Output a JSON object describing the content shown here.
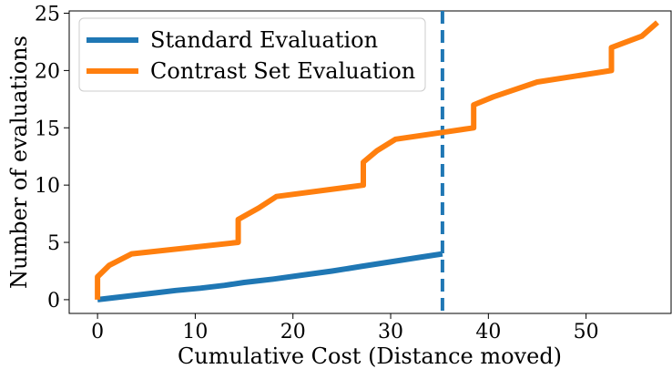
{
  "chart_data": {
    "type": "line",
    "title": "",
    "xlabel": "Cumulative Cost (Distance moved)",
    "ylabel": "Number of evaluations",
    "xlim": [
      -2.9,
      58.7
    ],
    "ylim": [
      -1.2,
      25.2
    ],
    "xticks": [
      0,
      10,
      20,
      30,
      40,
      50
    ],
    "yticks": [
      0,
      5,
      10,
      15,
      20,
      25
    ],
    "grid": false,
    "legend": {
      "placement": "top-left"
    },
    "vline": {
      "x": 35.3,
      "color": "#1f77b4",
      "style": "dashed"
    },
    "series": [
      {
        "name": "Standard Evaluation",
        "color": "#1f77b4",
        "x": [
          0,
          3,
          6,
          8,
          10.5,
          13,
          15,
          18,
          21,
          24,
          27,
          30,
          33,
          35.3
        ],
        "y": [
          0,
          0.3,
          0.6,
          0.8,
          1.0,
          1.25,
          1.5,
          1.8,
          2.15,
          2.5,
          2.9,
          3.3,
          3.7,
          4.0
        ]
      },
      {
        "name": "Contrast Set Evaluation",
        "color": "#ff7f0e",
        "x": [
          0,
          0,
          1.2,
          3.5,
          14.4,
          14.4,
          16.5,
          18.3,
          27.2,
          27.2,
          28.6,
          30.5,
          35.3,
          38.5,
          38.5,
          40.5,
          45,
          52.6,
          52.6,
          55.7,
          57.3
        ],
        "y": [
          0,
          2,
          3,
          4,
          5,
          7,
          8,
          9,
          10,
          12,
          13,
          14,
          14.6,
          15,
          17,
          17.7,
          19,
          20,
          22,
          23,
          24.2
        ]
      }
    ]
  }
}
